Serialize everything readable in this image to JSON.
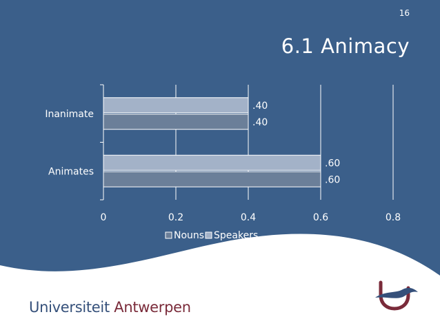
{
  "slide": {
    "page_number": "16",
    "title": "6.1 Animacy",
    "footer_university": "Universiteit",
    "footer_city": "Antwerpen"
  },
  "colors": {
    "background": "#3b5f8a",
    "nouns_bar": "#6b7f99",
    "speakers_bar": "#a3b2c8",
    "grid": "#ffffff",
    "text": "#ffffff",
    "logo_blue": "#35507a",
    "logo_red": "#7a2b3a"
  },
  "chart_data": {
    "type": "bar",
    "orientation": "horizontal",
    "categories": [
      "Animates",
      "Inanimate"
    ],
    "series": [
      {
        "name": "Nouns",
        "values": [
          0.6,
          0.4
        ],
        "labels": [
          ".60",
          ".40"
        ]
      },
      {
        "name": "Speakers",
        "values": [
          0.6,
          0.4
        ],
        "labels": [
          ".60",
          ".40"
        ]
      }
    ],
    "xlim": [
      0,
      0.8
    ],
    "xticks": [
      0,
      0.2,
      0.4,
      0.6,
      0.8
    ],
    "xtick_labels": [
      "0",
      "0.2",
      "0.4",
      "0.6",
      "0.8"
    ],
    "grid": true,
    "legend": "bottom"
  }
}
